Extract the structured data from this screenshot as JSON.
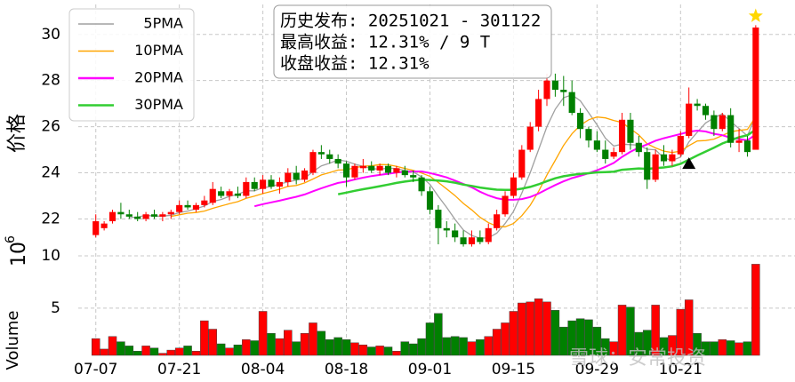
{
  "chart_data": {
    "type": "candlestick",
    "ylabel": "价格",
    "volume_label": "Volume",
    "volume_offset": "10",
    "volume_offset_exp": "6",
    "watermark": "雪球：安常投资",
    "info_lines": [
      "历史发布: 20251021 - 301122",
      "最高收益: 12.31% / 9 T",
      "收盘收益: 12.31%"
    ],
    "grid": true,
    "legend": "upper left",
    "up_color": "#ff0000",
    "down_color": "#008000",
    "xlim": [
      -2.1,
      83.7
    ],
    "xticks": [
      {
        "value": 0,
        "label": "07-07"
      },
      {
        "value": 10,
        "label": "07-21"
      },
      {
        "value": 20,
        "label": "08-04"
      },
      {
        "value": 30,
        "label": "08-18"
      },
      {
        "value": 40,
        "label": "09-01"
      },
      {
        "value": 50,
        "label": "09-15"
      },
      {
        "value": 60,
        "label": "09-29"
      },
      {
        "value": 70,
        "label": "10-21"
      }
    ],
    "ylim": [
      20.9,
      31.3
    ],
    "yticks": [
      22,
      24,
      26,
      28,
      30
    ],
    "vlim": [
      0.5,
      11.1
    ],
    "vticks": [
      5,
      10
    ],
    "open": [
      21.3,
      21.6,
      21.9,
      22.3,
      22.2,
      22.1,
      22.0,
      22.2,
      22.1,
      22.2,
      22.3,
      22.6,
      22.4,
      22.6,
      22.7,
      23.2,
      23.0,
      23.1,
      23.0,
      23.6,
      23.3,
      23.7,
      23.4,
      23.6,
      24.0,
      23.7,
      24.0,
      24.9,
      24.8,
      24.6,
      24.4,
      23.8,
      24.2,
      24.3,
      24.1,
      24.3,
      24.0,
      24.1,
      23.9,
      23.8,
      23.2,
      22.4,
      21.6,
      21.5,
      21.2,
      20.9,
      21.2,
      21.0,
      21.6,
      22.2,
      23.0,
      23.8,
      25.0,
      26.0,
      27.2,
      28.0,
      27.6,
      27.5,
      26.6,
      25.9,
      25.4,
      25.0,
      24.7,
      24.9,
      26.3,
      25.3,
      24.9,
      23.7,
      24.8,
      24.5,
      24.8,
      25.6,
      27.0,
      26.9,
      26.5,
      25.9,
      26.5,
      25.3,
      25.4,
      25.0
    ],
    "high": [
      22.2,
      21.9,
      22.4,
      22.7,
      22.4,
      22.3,
      22.3,
      22.4,
      22.3,
      22.4,
      22.8,
      22.8,
      22.7,
      23.0,
      23.6,
      23.4,
      23.3,
      23.4,
      23.8,
      23.8,
      23.9,
      23.9,
      23.8,
      24.2,
      24.3,
      24.2,
      25.0,
      25.2,
      25.0,
      24.8,
      24.5,
      24.4,
      24.6,
      24.5,
      24.4,
      24.4,
      24.3,
      24.3,
      24.1,
      23.9,
      23.4,
      22.6,
      21.9,
      21.8,
      21.5,
      21.5,
      21.5,
      21.8,
      22.4,
      23.2,
      24.0,
      25.2,
      26.2,
      27.6,
      28.3,
      28.3,
      28.2,
      28.0,
      26.8,
      26.0,
      25.8,
      25.4,
      25.1,
      26.6,
      26.6,
      25.6,
      25.1,
      25.0,
      25.2,
      25.0,
      25.8,
      27.7,
      27.2,
      27.0,
      26.7,
      26.6,
      26.8,
      25.9,
      25.6,
      30.4
    ],
    "low": [
      21.2,
      21.5,
      21.8,
      22.0,
      22.0,
      21.9,
      21.9,
      22.0,
      21.9,
      22.0,
      22.2,
      22.4,
      22.3,
      22.5,
      22.6,
      22.9,
      22.8,
      22.9,
      22.9,
      23.2,
      23.1,
      23.3,
      23.1,
      23.4,
      23.5,
      23.6,
      23.9,
      24.6,
      24.4,
      24.2,
      23.4,
      23.7,
      24.0,
      24.0,
      23.9,
      23.9,
      23.8,
      23.8,
      23.6,
      23.0,
      22.2,
      20.9,
      21.2,
      21.0,
      20.8,
      20.8,
      20.9,
      20.9,
      21.5,
      22.1,
      22.9,
      23.7,
      24.9,
      25.8,
      26.9,
      27.3,
      26.9,
      26.5,
      25.5,
      25.1,
      24.9,
      24.4,
      24.6,
      24.8,
      25.0,
      24.7,
      23.3,
      23.6,
      24.3,
      24.3,
      24.7,
      25.5,
      26.7,
      26.3,
      25.6,
      25.8,
      25.1,
      24.9,
      24.7,
      25.0
    ],
    "close": [
      21.9,
      21.8,
      22.3,
      22.2,
      22.1,
      22.0,
      22.2,
      22.1,
      22.2,
      22.3,
      22.6,
      22.5,
      22.6,
      22.8,
      23.3,
      23.0,
      23.2,
      23.0,
      23.6,
      23.3,
      23.7,
      23.4,
      23.6,
      24.0,
      23.7,
      24.1,
      24.9,
      24.8,
      24.6,
      24.4,
      23.8,
      24.3,
      24.3,
      24.1,
      24.3,
      24.0,
      24.2,
      23.9,
      23.8,
      23.2,
      22.4,
      21.6,
      21.5,
      21.2,
      20.9,
      21.2,
      21.0,
      21.6,
      22.2,
      23.0,
      23.8,
      25.0,
      26.0,
      27.2,
      28.0,
      27.6,
      27.5,
      26.6,
      25.9,
      25.4,
      25.0,
      24.6,
      24.9,
      26.3,
      25.3,
      24.9,
      23.7,
      24.8,
      24.5,
      24.8,
      25.6,
      27.0,
      26.9,
      26.5,
      25.9,
      26.5,
      25.3,
      25.4,
      24.9,
      30.3
    ],
    "volume": [
      2.1,
      1.1,
      2.3,
      1.8,
      1.4,
      0.9,
      1.4,
      1.2,
      0.7,
      1.0,
      1.2,
      1.4,
      0.9,
      3.8,
      3.0,
      1.6,
      1.2,
      1.5,
      2.0,
      1.9,
      4.7,
      2.6,
      2.1,
      2.9,
      1.8,
      2.6,
      3.6,
      2.8,
      2.0,
      2.2,
      2.0,
      1.7,
      1.5,
      1.3,
      1.4,
      1.3,
      0.9,
      1.8,
      1.6,
      2.1,
      3.6,
      4.5,
      2.2,
      2.3,
      2.2,
      1.8,
      2.0,
      2.3,
      3.0,
      3.6,
      4.7,
      5.5,
      5.6,
      5.9,
      5.6,
      4.8,
      3.2,
      3.8,
      4.0,
      3.9,
      3.2,
      2.1,
      1.8,
      5.3,
      5.1,
      2.7,
      2.9,
      5.3,
      2.2,
      2.4,
      4.9,
      5.8,
      2.6,
      1.8,
      1.8,
      2.0,
      1.9,
      1.7,
      1.8,
      9.2
    ],
    "series": [
      {
        "name": "5PMA",
        "color": "#a0a0a0",
        "values": [
          null,
          null,
          null,
          null,
          22.06,
          22.08,
          22.16,
          22.12,
          22.12,
          22.16,
          22.28,
          22.34,
          22.44,
          22.56,
          22.76,
          22.84,
          22.98,
          23.06,
          23.22,
          23.22,
          23.36,
          23.4,
          23.52,
          23.6,
          23.68,
          23.76,
          24.06,
          24.3,
          24.42,
          24.56,
          24.5,
          24.38,
          24.28,
          24.18,
          24.16,
          24.2,
          24.18,
          24.1,
          24.04,
          23.82,
          23.5,
          22.98,
          22.5,
          21.98,
          21.52,
          21.28,
          21.16,
          21.18,
          21.38,
          21.8,
          22.32,
          23.12,
          24.0,
          25.0,
          26.0,
          26.76,
          27.26,
          27.38,
          27.12,
          26.6,
          26.08,
          25.5,
          25.16,
          25.24,
          25.22,
          25.2,
          25.02,
          25.0,
          24.64,
          24.54,
          24.68,
          25.34,
          25.76,
          26.16,
          26.38,
          26.56,
          26.22,
          25.92,
          25.6,
          26.48
        ]
      },
      {
        "name": "10PMA",
        "color": "#ffa500",
        "values": [
          null,
          null,
          null,
          null,
          null,
          null,
          null,
          null,
          null,
          22.11,
          22.18,
          22.25,
          22.28,
          22.34,
          22.46,
          22.56,
          22.66,
          22.75,
          22.89,
          22.99,
          23.1,
          23.19,
          23.29,
          23.41,
          23.45,
          23.56,
          23.73,
          23.91,
          24.01,
          24.12,
          24.13,
          24.22,
          24.29,
          24.3,
          24.36,
          24.35,
          24.28,
          24.19,
          24.11,
          23.99,
          23.85,
          23.58,
          23.3,
          23.01,
          22.67,
          22.39,
          22.07,
          21.84,
          21.68,
          21.66,
          21.8,
          22.14,
          22.59,
          23.19,
          23.9,
          24.54,
          25.19,
          25.69,
          26.06,
          26.3,
          26.42,
          26.38,
          26.27,
          26.18,
          25.91,
          25.64,
          25.26,
          25.08,
          24.94,
          24.88,
          24.94,
          25.18,
          25.38,
          25.4,
          25.46,
          25.62,
          25.78,
          25.84,
          25.88,
          26.43
        ]
      },
      {
        "name": "20PMA",
        "color": "#ff00ff",
        "values": [
          null,
          null,
          null,
          null,
          null,
          null,
          null,
          null,
          null,
          null,
          null,
          null,
          null,
          null,
          null,
          null,
          null,
          null,
          null,
          22.55,
          22.64,
          22.72,
          22.79,
          22.88,
          22.96,
          23.06,
          23.2,
          23.33,
          23.45,
          23.56,
          23.62,
          23.71,
          23.79,
          23.86,
          23.91,
          23.96,
          24.01,
          24.05,
          24.06,
          24.06,
          23.99,
          23.9,
          23.8,
          23.66,
          23.52,
          23.37,
          23.18,
          23.02,
          22.9,
          22.83,
          22.83,
          22.86,
          22.95,
          23.1,
          23.29,
          23.47,
          23.63,
          23.77,
          23.87,
          23.98,
          24.11,
          24.26,
          24.43,
          24.69,
          24.91,
          25.09,
          25.23,
          25.39,
          25.5,
          25.59,
          25.68,
          25.78,
          25.83,
          25.79,
          25.69,
          25.63,
          25.52,
          25.46,
          25.41,
          25.66
        ]
      },
      {
        "name": "30PMA",
        "color": "#32cd32",
        "values": [
          null,
          null,
          null,
          null,
          null,
          null,
          null,
          null,
          null,
          null,
          null,
          null,
          null,
          null,
          null,
          null,
          null,
          null,
          null,
          null,
          null,
          null,
          null,
          null,
          null,
          null,
          null,
          null,
          null,
          23.07,
          23.14,
          23.22,
          23.29,
          23.35,
          23.42,
          23.49,
          23.56,
          23.62,
          23.67,
          23.7,
          23.69,
          23.66,
          23.63,
          23.57,
          23.49,
          23.43,
          23.36,
          23.31,
          23.27,
          23.26,
          23.26,
          23.31,
          23.39,
          23.5,
          23.64,
          23.76,
          23.85,
          23.91,
          23.95,
          23.98,
          24.02,
          24.03,
          24.05,
          24.13,
          24.16,
          24.19,
          24.17,
          24.2,
          24.23,
          24.28,
          24.39,
          24.57,
          24.75,
          24.92,
          25.09,
          25.27,
          25.41,
          25.54,
          25.63,
          25.87
        ]
      }
    ],
    "markers": [
      {
        "shape": "star",
        "x": 79,
        "y": 30.8,
        "color": "#ffd700"
      },
      {
        "shape": "triangle",
        "x": 71,
        "y": 24.4,
        "color": "#000000"
      }
    ]
  }
}
